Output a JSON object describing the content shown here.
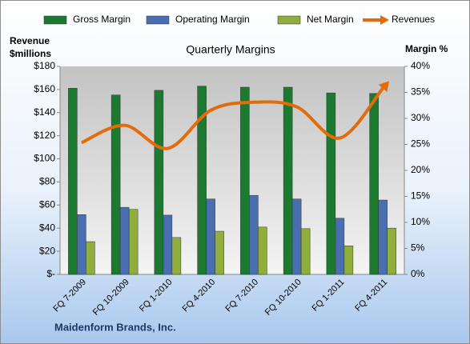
{
  "chart_data": {
    "type": "bar-line",
    "title": "Quarterly Margins",
    "ylabel": [
      "Revenue",
      "$millions"
    ],
    "y2label": "Margin %",
    "footer": "Maidenform Brands, Inc.",
    "categories": [
      "FQ 7-2009",
      "FQ 10-2009",
      "FQ 1-2010",
      "FQ 4-2010",
      "FQ 7-2010",
      "FQ 10-2010",
      "FQ 1-2011",
      "FQ 4-2011"
    ],
    "series": [
      {
        "name": "Gross Margin",
        "type": "bar",
        "axis": "y2",
        "color": "#1b7a2f",
        "values": [
          35.8,
          34.5,
          35.4,
          36.2,
          36,
          36,
          34.9,
          34.8
        ]
      },
      {
        "name": "Operating Margin",
        "type": "bar",
        "axis": "y2",
        "color": "#4a6fb0",
        "values": [
          11.5,
          12.9,
          11.4,
          14.5,
          15.2,
          14.5,
          10.8,
          14.3
        ]
      },
      {
        "name": "Net Margin",
        "type": "bar",
        "axis": "y2",
        "color": "#8fae3c",
        "values": [
          6.3,
          12.5,
          7.1,
          8.3,
          9.1,
          8.8,
          5.5,
          8.9
        ]
      },
      {
        "name": "Revenues",
        "type": "line",
        "axis": "y",
        "color": "#e36c0a",
        "values": [
          114,
          129,
          109,
          142,
          149,
          145,
          118,
          161
        ]
      }
    ],
    "ylim": [
      0,
      180
    ],
    "yticks": [
      {
        "value": 0,
        "label": "$-"
      },
      {
        "value": 20,
        "label": "$20"
      },
      {
        "value": 40,
        "label": "$40"
      },
      {
        "value": 60,
        "label": "$60"
      },
      {
        "value": 80,
        "label": "$80"
      },
      {
        "value": 100,
        "label": "$100"
      },
      {
        "value": 120,
        "label": "$120"
      },
      {
        "value": 140,
        "label": "$140"
      },
      {
        "value": 160,
        "label": "$160"
      },
      {
        "value": 180,
        "label": "$180"
      }
    ],
    "y2lim": [
      0,
      40
    ],
    "y2ticks": [
      {
        "value": 0,
        "label": "0%"
      },
      {
        "value": 5,
        "label": "5%"
      },
      {
        "value": 10,
        "label": "10%"
      },
      {
        "value": 15,
        "label": "15%"
      },
      {
        "value": 20,
        "label": "20%"
      },
      {
        "value": 25,
        "label": "25%"
      },
      {
        "value": 30,
        "label": "30%"
      },
      {
        "value": 35,
        "label": "35%"
      },
      {
        "value": 40,
        "label": "40%"
      }
    ],
    "legend": "top"
  }
}
